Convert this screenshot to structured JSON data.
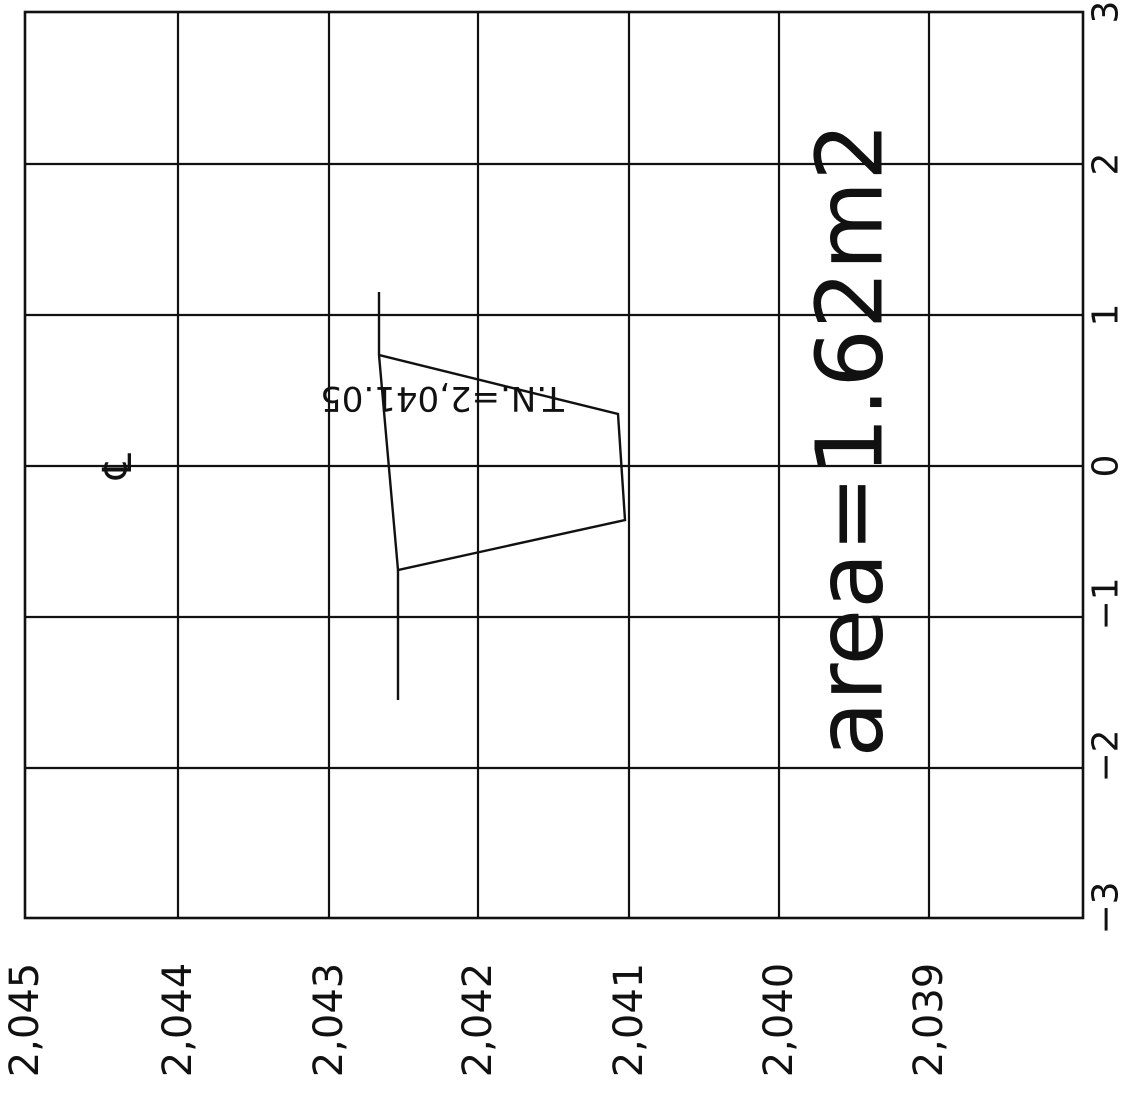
{
  "drawing": {
    "offset_axis_labels": [
      "3",
      "2",
      "1",
      "0",
      "−1",
      "−2",
      "−3"
    ],
    "elevation_axis_labels": [
      "2,045",
      "2,044",
      "2,043",
      "2,042",
      "2,041",
      "2,040",
      "2,039"
    ],
    "ground_label": "T.N.=2,041.05",
    "centerline_symbol": "℄",
    "area_label": "area=1.62m2"
  }
}
